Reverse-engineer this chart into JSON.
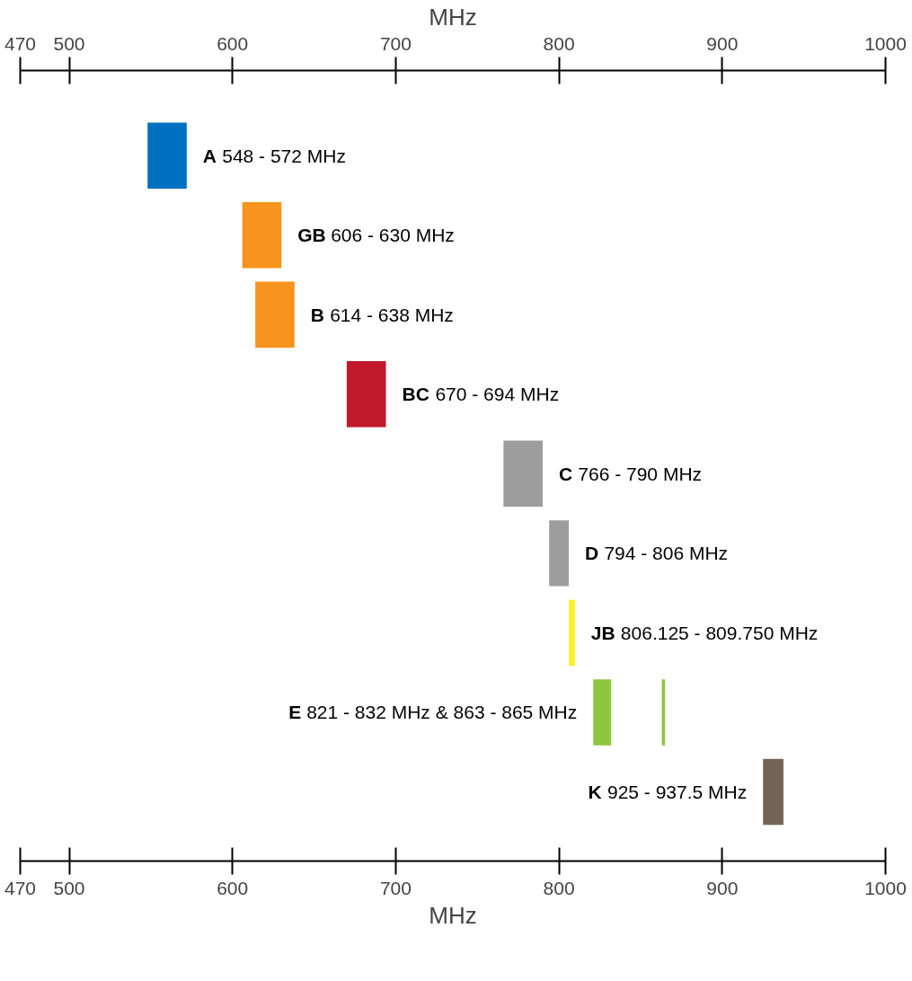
{
  "chart_data": {
    "type": "bar",
    "orientation": "horizontal",
    "xlabel": "MHz",
    "x2label": "MHz",
    "categories": [
      "A",
      "GB",
      "B",
      "BC",
      "C",
      "D",
      "JB",
      "E",
      "K"
    ],
    "series": [
      {
        "values": [
          24,
          24,
          24,
          24,
          24,
          12,
          3.625,
          11,
          12.5
        ],
        "base": [
          548,
          606,
          614,
          670,
          766,
          794,
          806.125,
          821,
          925
        ],
        "colors": [
          "#0070c0",
          "#f7941d",
          "#f7941d",
          "#c1192b",
          "#9d9d9d",
          "#9d9d9d",
          "#ffee22",
          "#8dc63f",
          "#736357"
        ]
      },
      {
        "values": [
          null,
          null,
          null,
          null,
          null,
          null,
          null,
          2,
          null
        ],
        "base": [
          null,
          null,
          null,
          null,
          null,
          null,
          null,
          863,
          null
        ],
        "colors": [
          null,
          null,
          null,
          null,
          null,
          null,
          null,
          "#8dc63f",
          null
        ]
      }
    ],
    "xlim": [
      470,
      1000
    ],
    "xticks": [
      470,
      500,
      600,
      700,
      800,
      900,
      1000
    ],
    "x2lim": [
      470,
      1000
    ],
    "x2ticks": [
      470,
      500,
      600,
      700,
      800,
      900,
      1000
    ],
    "annotations": [
      {
        "text": "548 - 572 MHz",
        "x": 572,
        "y": "A"
      },
      {
        "text": "606 - 630 MHz",
        "x": 630,
        "y": "GB"
      },
      {
        "text": "614 - 638 MHz",
        "x": 638,
        "y": "B"
      },
      {
        "text": "670 - 694 MHz",
        "x": 694,
        "y": "BC"
      },
      {
        "text": "766 - 790 MHz",
        "x": 790,
        "y": "C"
      },
      {
        "text": "794 - 806 MHz",
        "x": 806,
        "y": "D"
      },
      {
        "text": "806.125 - 809.750 MHz",
        "x": 809.75,
        "y": "JB"
      },
      {
        "text": "821 - 832 MHz & 863 - 865 MHz",
        "x": 821,
        "y": "E"
      },
      {
        "text": "925 - 937.5 MHz",
        "x": 925,
        "y": "K"
      }
    ],
    "grid": false
  }
}
